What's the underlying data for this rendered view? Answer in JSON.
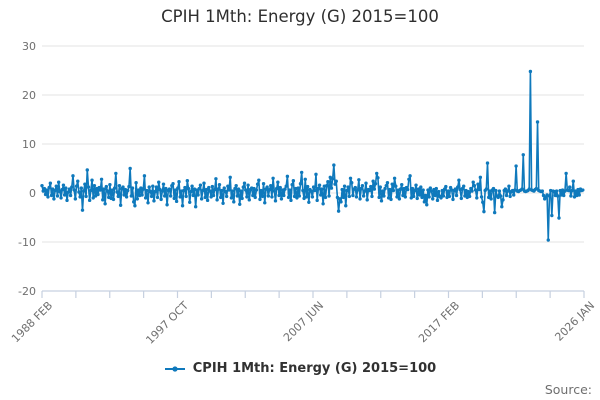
{
  "title": "CPIH 1Mth: Energy (G) 2015=100",
  "legend": {
    "label": "CPIH 1Mth: Energy (G) 2015=100"
  },
  "source_label": "Source:",
  "colors": {
    "series_line": "#0f79bc",
    "grid_line": "#e3e3e3",
    "axis_line": "#c6d0e0",
    "tick_text": "#6f6f6f",
    "title_text": "#2e2e2e",
    "legend_text": "#313131",
    "source_text": "#6f6f6f"
  },
  "chart_data": {
    "type": "line",
    "title": "CPIH 1Mth: Energy (G) 2015=100",
    "series_name": "CPIH 1Mth: Energy (G) 2015=100",
    "frequency": "monthly",
    "x_start": "1988 FEB",
    "x_end": "2026 JAN",
    "x_total_months": 455,
    "x_tick_count": 17,
    "x_label_tick_indices": [
      0,
      4,
      8,
      12,
      16
    ],
    "x_tick_labels": [
      "1988 FEB",
      "1997 OCT",
      "2007 JUN",
      "2017 FEB",
      "2026 JAN"
    ],
    "y_ticks": [
      30,
      20,
      10,
      0,
      -10,
      -20
    ],
    "ylim": [
      -20,
      30
    ],
    "grid": "horizontal",
    "legend_position": "bottom",
    "marker": "circle",
    "values": [
      1.5,
      0.4,
      0.9,
      -0.3,
      0.6,
      -0.8,
      1.1,
      2.0,
      -0.5,
      0.8,
      -1.2,
      0.5,
      1.4,
      -0.6,
      2.2,
      0.3,
      -1.0,
      0.7,
      1.6,
      -0.4,
      1.0,
      -1.5,
      0.2,
      0.8,
      -0.5,
      1.2,
      3.5,
      0.6,
      -1.2,
      1.4,
      2.4,
      0.2,
      -0.8,
      1.0,
      -3.5,
      0.4,
      1.8,
      -0.7,
      4.7,
      1.2,
      -1.5,
      0.5,
      2.6,
      -1.0,
      1.5,
      -0.6,
      0.9,
      -0.3,
      1.1,
      0.6,
      2.8,
      -1.4,
      0.8,
      -2.2,
      1.3,
      0.4,
      -0.9,
      1.7,
      -1.1,
      0.6,
      -1.3,
      1.0,
      4.0,
      0.2,
      -0.7,
      1.5,
      -2.5,
      0.9,
      1.2,
      -0.4,
      0.7,
      -0.8,
      0.5,
      1.3,
      5.0,
      -0.6,
      1.0,
      -1.8,
      -2.6,
      2.1,
      -1.2,
      0.6,
      -0.5,
      1.0,
      -0.4,
      0.8,
      3.5,
      -1.0,
      0.5,
      -2.0,
      1.2,
      0.3,
      -0.7,
      1.4,
      -1.6,
      0.3,
      1.2,
      -0.9,
      2.2,
      0.7,
      -1.3,
      0.4,
      1.8,
      -0.6,
      0.9,
      -2.4,
      0.5,
      0.8,
      -0.6,
      1.5,
      1.9,
      -1.1,
      0.6,
      -1.7,
      1.0,
      2.3,
      -0.8,
      0.4,
      -2.6,
      0.5,
      1.1,
      -0.7,
      2.5,
      0.9,
      -1.9,
      0.3,
      1.4,
      -0.5,
      0.8,
      -2.8,
      0.6,
      -0.4,
      0.9,
      1.6,
      -1.2,
      0.5,
      2.0,
      -0.9,
      0.7,
      -1.5,
      1.1,
      0.4,
      -0.8,
      1.3,
      -0.5,
      0.7,
      2.9,
      -1.4,
      0.8,
      1.7,
      -0.9,
      0.5,
      -2.1,
      1.0,
      0.3,
      -0.7,
      1.4,
      0.6,
      3.2,
      -1.0,
      0.4,
      -1.8,
      0.9,
      1.5,
      -0.6,
      0.8,
      -2.3,
      0.4,
      -1.1,
      1.2,
      2.0,
      0.6,
      -0.8,
      1.6,
      -1.4,
      0.7,
      1.0,
      -0.5,
      0.9,
      -0.9,
      0.6,
      1.8,
      2.6,
      -1.3,
      0.5,
      -0.7,
      1.9,
      -2.0,
      0.8,
      1.2,
      -0.6,
      0.7,
      1.5,
      -0.8,
      3.0,
      0.4,
      -1.6,
      0.9,
      2.2,
      -0.5,
      1.1,
      -1.2,
      0.6,
      -0.5,
      0.8,
      1.4,
      3.4,
      -0.9,
      0.6,
      -1.5,
      1.7,
      2.5,
      -0.7,
      0.9,
      -1.0,
      1.0,
      -0.6,
      1.9,
      4.2,
      0.5,
      -1.1,
      2.8,
      -0.8,
      1.3,
      -1.9,
      0.7,
      0.4,
      -0.8,
      1.2,
      0.5,
      3.8,
      -1.5,
      0.9,
      1.6,
      -0.4,
      0.8,
      -2.2,
      1.4,
      -0.9,
      1.5,
      2.3,
      -0.6,
      3.2,
      1.0,
      2.9,
      5.7,
      1.8,
      2.4,
      -0.9,
      -3.7,
      -1.2,
      -1.8,
      0.7,
      -0.9,
      1.4,
      -2.6,
      0.5,
      1.2,
      -0.7,
      3.0,
      2.1,
      -0.5,
      0.8,
      1.1,
      -0.8,
      0.6,
      2.7,
      -1.2,
      0.9,
      1.5,
      -0.6,
      0.4,
      2.0,
      -1.4,
      0.7,
      0.5,
      1.3,
      -0.7,
      2.4,
      0.8,
      1.9,
      4.0,
      3.1,
      -0.9,
      1.2,
      -1.6,
      0.4,
      -0.6,
      0.9,
      1.5,
      2.1,
      -1.0,
      0.7,
      -1.3,
      1.8,
      0.5,
      3.0,
      1.4,
      -0.8,
      0.6,
      -1.2,
      0.8,
      1.7,
      -0.5,
      0.9,
      -0.8,
      1.1,
      0.7,
      2.8,
      3.5,
      -1.0,
      0.9,
      -0.7,
      0.5,
      1.6,
      -1.1,
      0.8,
      -0.4,
      1.2,
      -0.9,
      0.6,
      -1.8,
      -0.5,
      -2.4,
      0.6,
      -0.8,
      1.0,
      0.4,
      -1.2,
      0.7,
      -0.5,
      0.9,
      -1.5,
      0.3,
      -0.7,
      -1.0,
      0.5,
      -0.6,
      0.8,
      1.3,
      -0.9,
      0.4,
      -0.7,
      1.1,
      0.6,
      -1.3,
      0.5,
      0.8,
      -0.5,
      1.2,
      2.6,
      0.7,
      -1.1,
      0.9,
      1.4,
      -0.6,
      0.5,
      -0.9,
      0.3,
      -0.7,
      0.9,
      0.4,
      2.2,
      1.5,
      0.6,
      -1.0,
      1.8,
      0.7,
      3.2,
      -0.8,
      -1.9,
      -3.8,
      0.5,
      0.8,
      6.1,
      -0.9,
      0.4,
      -1.2,
      0.6,
      0.9,
      -4.0,
      0.5,
      -0.6,
      -0.9,
      0.4,
      -0.6,
      -2.8,
      -1.4,
      0.5,
      0.8,
      -0.5,
      0.4,
      1.4,
      -0.7,
      0.3,
      0.5,
      -0.4,
      0.6,
      5.5,
      0.4,
      0.3,
      0.5,
      0.6,
      0.8,
      7.8,
      0.4,
      0.3,
      0.4,
      0.5,
      0.8,
      24.8,
      0.6,
      0.5,
      0.4,
      0.7,
      0.9,
      14.5,
      0.5,
      0.4,
      0.3,
      0.4,
      -0.5,
      -1.2,
      -0.8,
      -0.4,
      -9.6,
      -0.6,
      0.5,
      -4.6,
      0.4,
      0.3,
      -0.5,
      0.4,
      -0.6,
      -5.1,
      0.5,
      -0.4,
      0.6,
      -0.5,
      0.4,
      4.0,
      0.6,
      0.5,
      1.2,
      -0.6,
      0.5,
      2.4,
      -0.8,
      0.4,
      -0.5,
      0.7,
      -0.4,
      0.8,
      0.5,
      0.6
    ]
  }
}
